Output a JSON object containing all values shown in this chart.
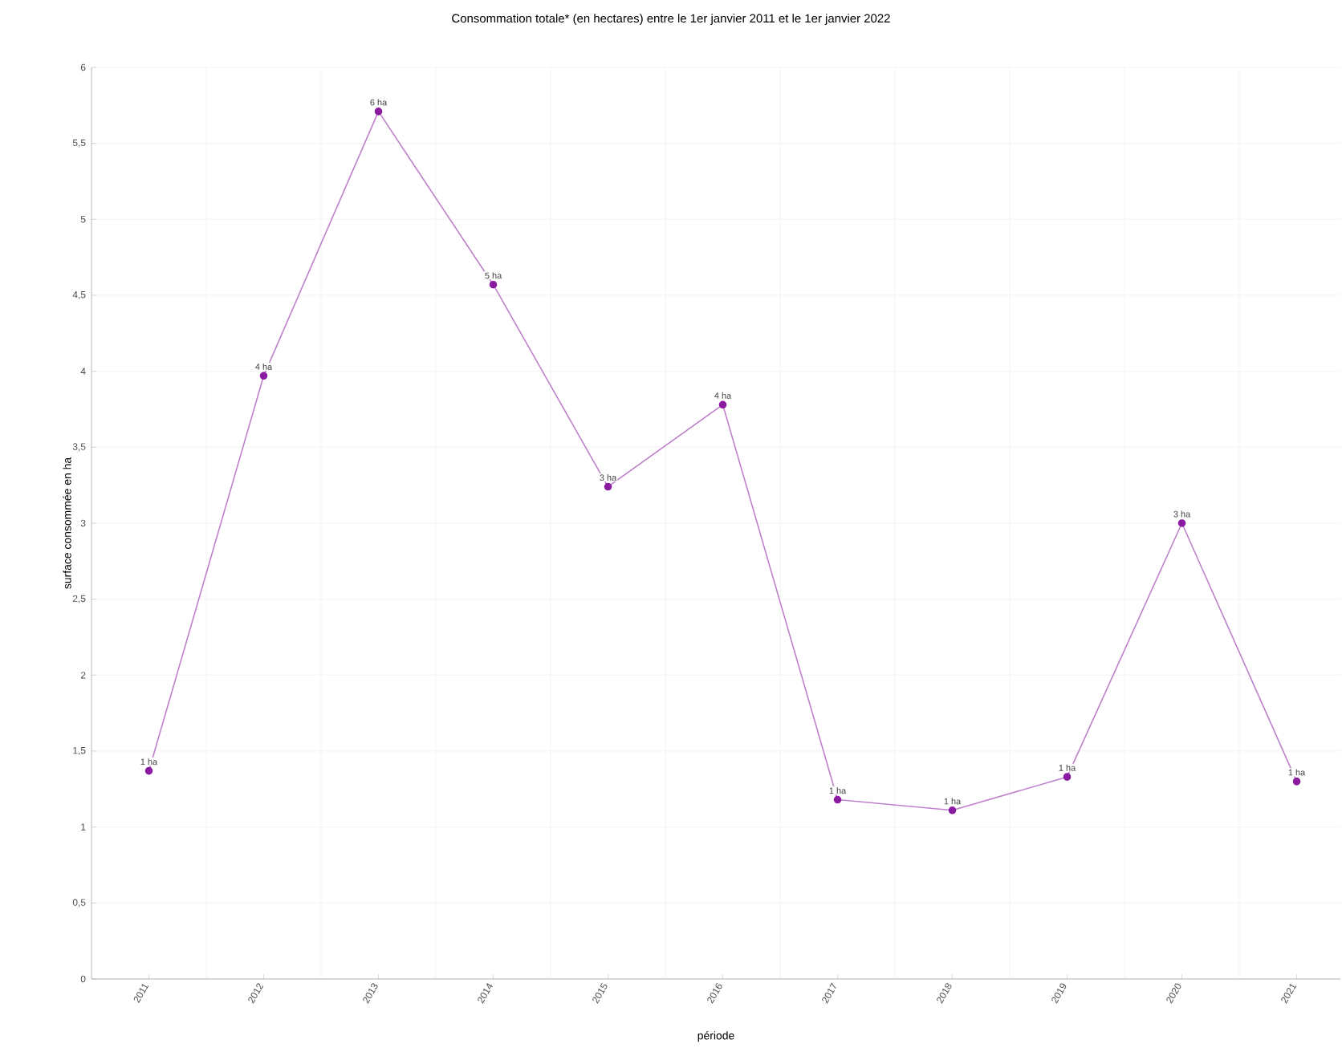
{
  "chart_data": {
    "type": "line",
    "title": "Consommation totale* (en hectares) entre le 1er janvier 2011 et le 1er janvier 2022",
    "xlabel": "période",
    "ylabel": "surface consommée en ha",
    "categories": [
      "2011",
      "2012",
      "2013",
      "2014",
      "2015",
      "2016",
      "2017",
      "2018",
      "2019",
      "2020",
      "2021"
    ],
    "series": [
      {
        "color": "#8a1aa0",
        "values": [
          1.37,
          3.97,
          5.71,
          4.57,
          3.24,
          3.78,
          1.18,
          1.11,
          1.33,
          3.0,
          1.3
        ],
        "value_labels": [
          "1 ha",
          "4 ha",
          "6 ha",
          "5 ha",
          "3 ha",
          "4 ha",
          "1 ha",
          "1 ha",
          "1 ha",
          "3 ha",
          "1 ha"
        ]
      }
    ],
    "ylim": [
      0,
      6
    ],
    "yticks": [
      0,
      {
        "value": 0.5,
        "label": "0,5"
      },
      1,
      {
        "value": 1.5,
        "label": "1,5"
      },
      2,
      {
        "value": 2.5,
        "label": "2,5"
      },
      3,
      {
        "value": 3.5,
        "label": "3,5"
      },
      4,
      {
        "value": 4.5,
        "label": "4,5"
      },
      5,
      {
        "value": 5.5,
        "label": "5,5"
      },
      6
    ],
    "grid": true,
    "marker": "circle",
    "line_style": "solid"
  }
}
